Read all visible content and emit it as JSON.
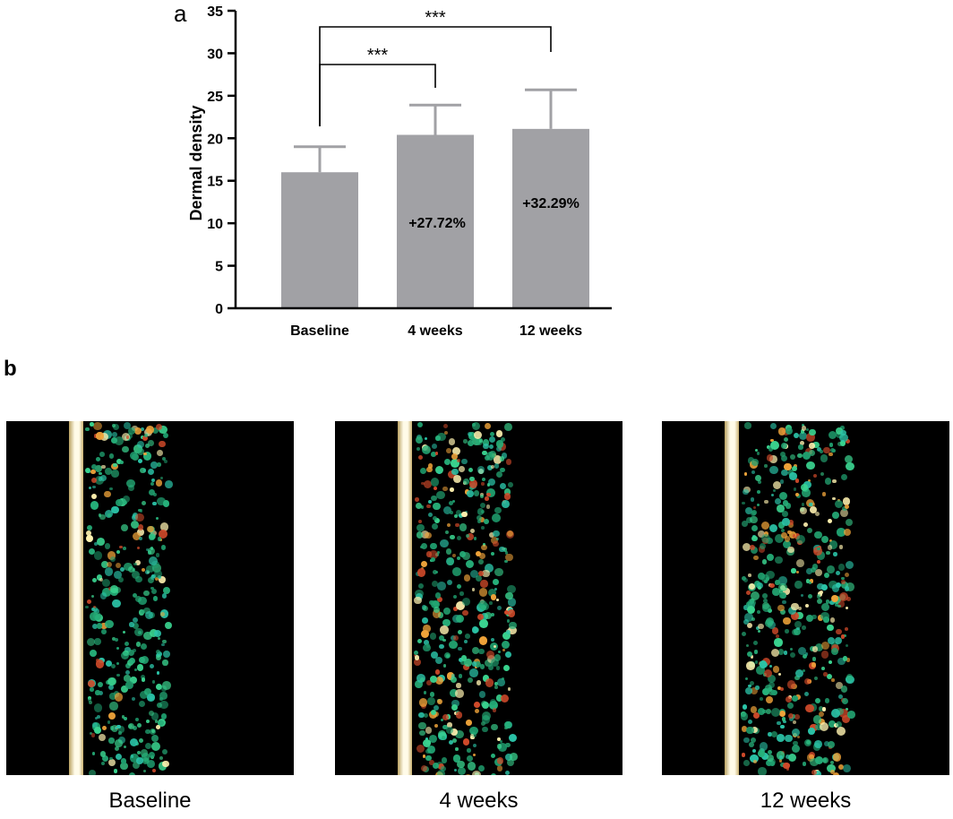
{
  "panels": {
    "a": "a",
    "b": "b"
  },
  "chart_data": {
    "type": "bar",
    "categories": [
      "Baseline",
      "4 weeks",
      "12 weeks"
    ],
    "values": [
      16,
      20.4,
      21.1
    ],
    "error_upper": [
      19.0,
      23.9,
      25.7
    ],
    "ylabel": "Dermal density",
    "xlabel": "",
    "ylim": [
      0,
      35
    ],
    "yticks": [
      0,
      5,
      10,
      15,
      20,
      25,
      30,
      35
    ],
    "bar_color": "#a1a1a5",
    "grid": false,
    "bar_annotations": [
      "",
      "+27.72%",
      "+32.29%"
    ],
    "significance": [
      {
        "from": "Baseline",
        "to": "4 weeks",
        "label": "***"
      },
      {
        "from": "Baseline",
        "to": "12 weeks",
        "label": "***"
      }
    ]
  },
  "images": [
    {
      "caption": "Baseline",
      "intensity": 0.45
    },
    {
      "caption": "4 weeks",
      "intensity": 0.75
    },
    {
      "caption": "12 weeks",
      "intensity": 0.95
    }
  ]
}
